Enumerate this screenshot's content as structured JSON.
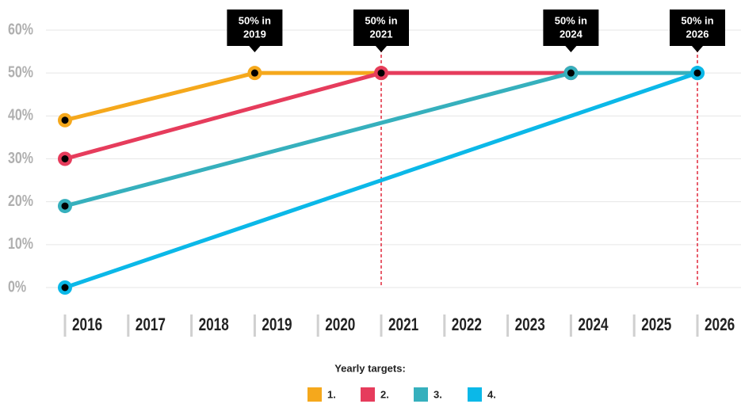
{
  "chart_data": {
    "type": "line",
    "xlim": [
      2016,
      2026
    ],
    "xticks": [
      2016,
      2017,
      2018,
      2019,
      2020,
      2021,
      2022,
      2023,
      2024,
      2025,
      2026
    ],
    "ylim": [
      0,
      60
    ],
    "yticks": [
      {
        "value": 0,
        "label": "0%"
      },
      {
        "value": 10,
        "label": "10%"
      },
      {
        "value": 20,
        "label": "20%"
      },
      {
        "value": 30,
        "label": "30%"
      },
      {
        "value": 40,
        "label": "40%"
      },
      {
        "value": 50,
        "label": "50%"
      },
      {
        "value": 60,
        "label": "60%"
      }
    ],
    "grid": true,
    "series": [
      {
        "name": "1.",
        "color": "#f5a81c",
        "x": [
          2016,
          2019,
          2021
        ],
        "values": [
          39,
          50,
          50
        ]
      },
      {
        "name": "2.",
        "color": "#e63c5c",
        "x": [
          2016,
          2021,
          2024
        ],
        "values": [
          30,
          50,
          50
        ]
      },
      {
        "name": "3.",
        "color": "#36b0bd",
        "x": [
          2016,
          2024,
          2026
        ],
        "values": [
          19,
          50,
          50
        ]
      },
      {
        "name": "4.",
        "color": "#0bb8e8",
        "x": [
          2016,
          2026
        ],
        "values": [
          0,
          50
        ]
      }
    ],
    "annotations": [
      {
        "x": 2019,
        "lines": [
          "50% in",
          "2019"
        ],
        "guide": false
      },
      {
        "x": 2021,
        "lines": [
          "50% in",
          "2021"
        ],
        "guide": true
      },
      {
        "x": 2024,
        "lines": [
          "50% in",
          "2024"
        ],
        "guide": false
      },
      {
        "x": 2026,
        "lines": [
          "50% in",
          "2026"
        ],
        "guide": true
      }
    ],
    "legend_title": "Yearly targets:",
    "legend": "bottom"
  }
}
